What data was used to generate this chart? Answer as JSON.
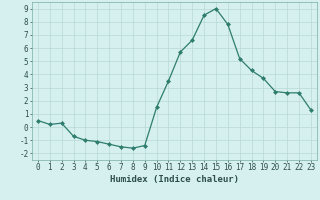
{
  "x": [
    0,
    1,
    2,
    3,
    4,
    5,
    6,
    7,
    8,
    9,
    10,
    11,
    12,
    13,
    14,
    15,
    16,
    17,
    18,
    19,
    20,
    21,
    22,
    23
  ],
  "y": [
    0.5,
    0.2,
    0.3,
    -0.7,
    -1.0,
    -1.1,
    -1.3,
    -1.5,
    -1.6,
    -1.4,
    1.5,
    3.5,
    5.7,
    6.6,
    8.5,
    9.0,
    7.8,
    5.2,
    4.3,
    3.7,
    2.7,
    2.6,
    2.6,
    1.3
  ],
  "line_color": "#2e7d6e",
  "marker": "D",
  "marker_size": 2.0,
  "bg_color": "#d6f0ef",
  "grid_color": "#b8d8d4",
  "xlabel": "Humidex (Indice chaleur)",
  "xlim": [
    -0.5,
    23.5
  ],
  "ylim": [
    -2.5,
    9.5
  ],
  "yticks": [
    -2,
    -1,
    0,
    1,
    2,
    3,
    4,
    5,
    6,
    7,
    8,
    9
  ],
  "xlabel_fontsize": 6.5,
  "tick_fontsize": 5.5,
  "linewidth": 0.9
}
